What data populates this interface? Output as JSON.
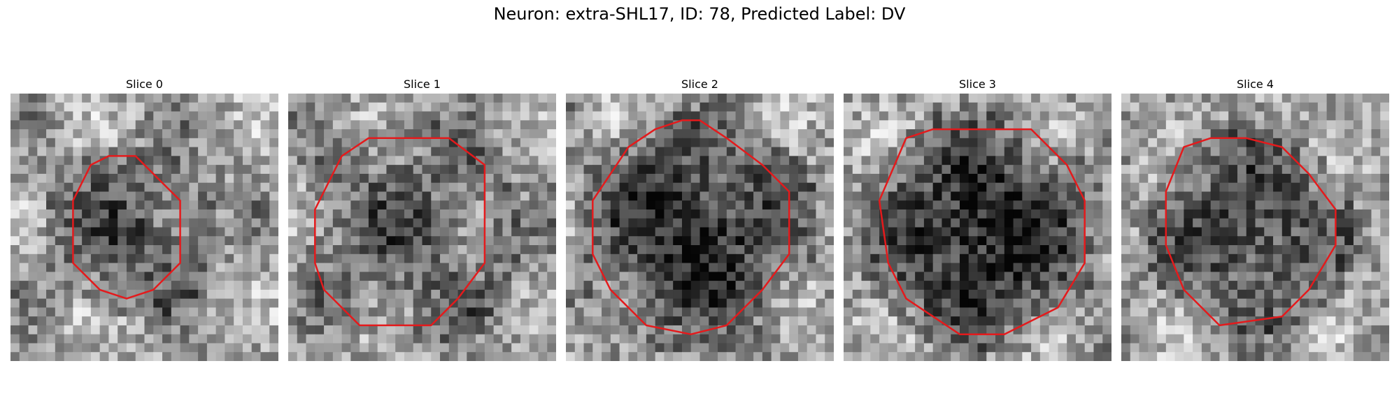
{
  "figure": {
    "title": "Neuron: extra-SHL17, ID: 78, Predicted Label: DV",
    "contour_color": "#e41a1c"
  },
  "panels": [
    {
      "title": "Slice 0",
      "seed": 11,
      "blob_dark": 0.35
    },
    {
      "title": "Slice 1",
      "seed": 23,
      "blob_dark": 0.3
    },
    {
      "title": "Slice 2",
      "seed": 37,
      "blob_dark": 0.55
    },
    {
      "title": "Slice 3",
      "seed": 41,
      "blob_dark": 0.6
    },
    {
      "title": "Slice 4",
      "seed": 53,
      "blob_dark": 0.45
    }
  ]
}
